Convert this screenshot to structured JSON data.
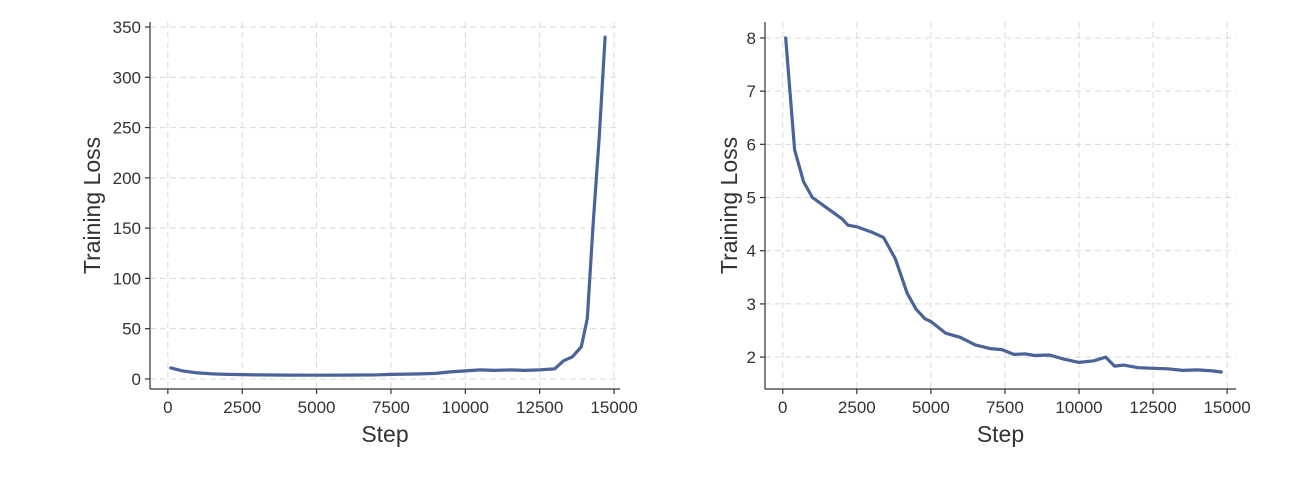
{
  "chart_data": [
    {
      "type": "line",
      "xlabel": "Step",
      "ylabel": "Training Loss",
      "xlim": [
        -600,
        15200
      ],
      "ylim": [
        -10,
        355
      ],
      "xticks": [
        0,
        2500,
        5000,
        7500,
        10000,
        12500,
        15000
      ],
      "yticks": [
        0,
        50,
        100,
        150,
        200,
        250,
        300,
        350
      ],
      "grid": true,
      "series_color": "#4a6398",
      "x": [
        100,
        500,
        1000,
        1500,
        2000,
        2500,
        3000,
        4000,
        5000,
        6000,
        7000,
        7500,
        8000,
        8500,
        9000,
        9500,
        10000,
        10500,
        11000,
        11500,
        12000,
        12500,
        13000,
        13300,
        13600,
        13900,
        14100,
        14300,
        14500,
        14700
      ],
      "y": [
        11,
        8,
        6,
        5,
        4.5,
        4.3,
        4,
        3.8,
        3.7,
        3.8,
        4,
        4.5,
        4.8,
        5,
        5.5,
        7,
        8,
        9,
        8.5,
        9,
        8.5,
        9,
        10,
        18,
        22,
        32,
        60,
        155,
        240,
        340
      ]
    },
    {
      "type": "line",
      "xlabel": "Step",
      "ylabel": "Training Loss",
      "xlim": [
        -600,
        15300
      ],
      "ylim": [
        1.4,
        8.3
      ],
      "xticks": [
        0,
        2500,
        5000,
        7500,
        10000,
        12500,
        15000
      ],
      "yticks": [
        2,
        3,
        4,
        5,
        6,
        7,
        8
      ],
      "grid": true,
      "series_color": "#4a6398",
      "x": [
        100,
        400,
        700,
        1000,
        1500,
        2000,
        2200,
        2500,
        3000,
        3400,
        3800,
        4200,
        4500,
        4800,
        5000,
        5500,
        6000,
        6500,
        7000,
        7400,
        7800,
        8200,
        8500,
        9000,
        9500,
        10000,
        10500,
        10900,
        11200,
        11500,
        12000,
        12500,
        13000,
        13500,
        14000,
        14500,
        14800
      ],
      "y": [
        8.0,
        5.9,
        5.3,
        5.0,
        4.8,
        4.6,
        4.48,
        4.45,
        4.35,
        4.25,
        3.85,
        3.2,
        2.9,
        2.72,
        2.67,
        2.45,
        2.37,
        2.23,
        2.16,
        2.14,
        2.05,
        2.06,
        2.03,
        2.04,
        1.96,
        1.9,
        1.93,
        2.0,
        1.83,
        1.85,
        1.8,
        1.79,
        1.78,
        1.75,
        1.76,
        1.74,
        1.72
      ]
    }
  ]
}
